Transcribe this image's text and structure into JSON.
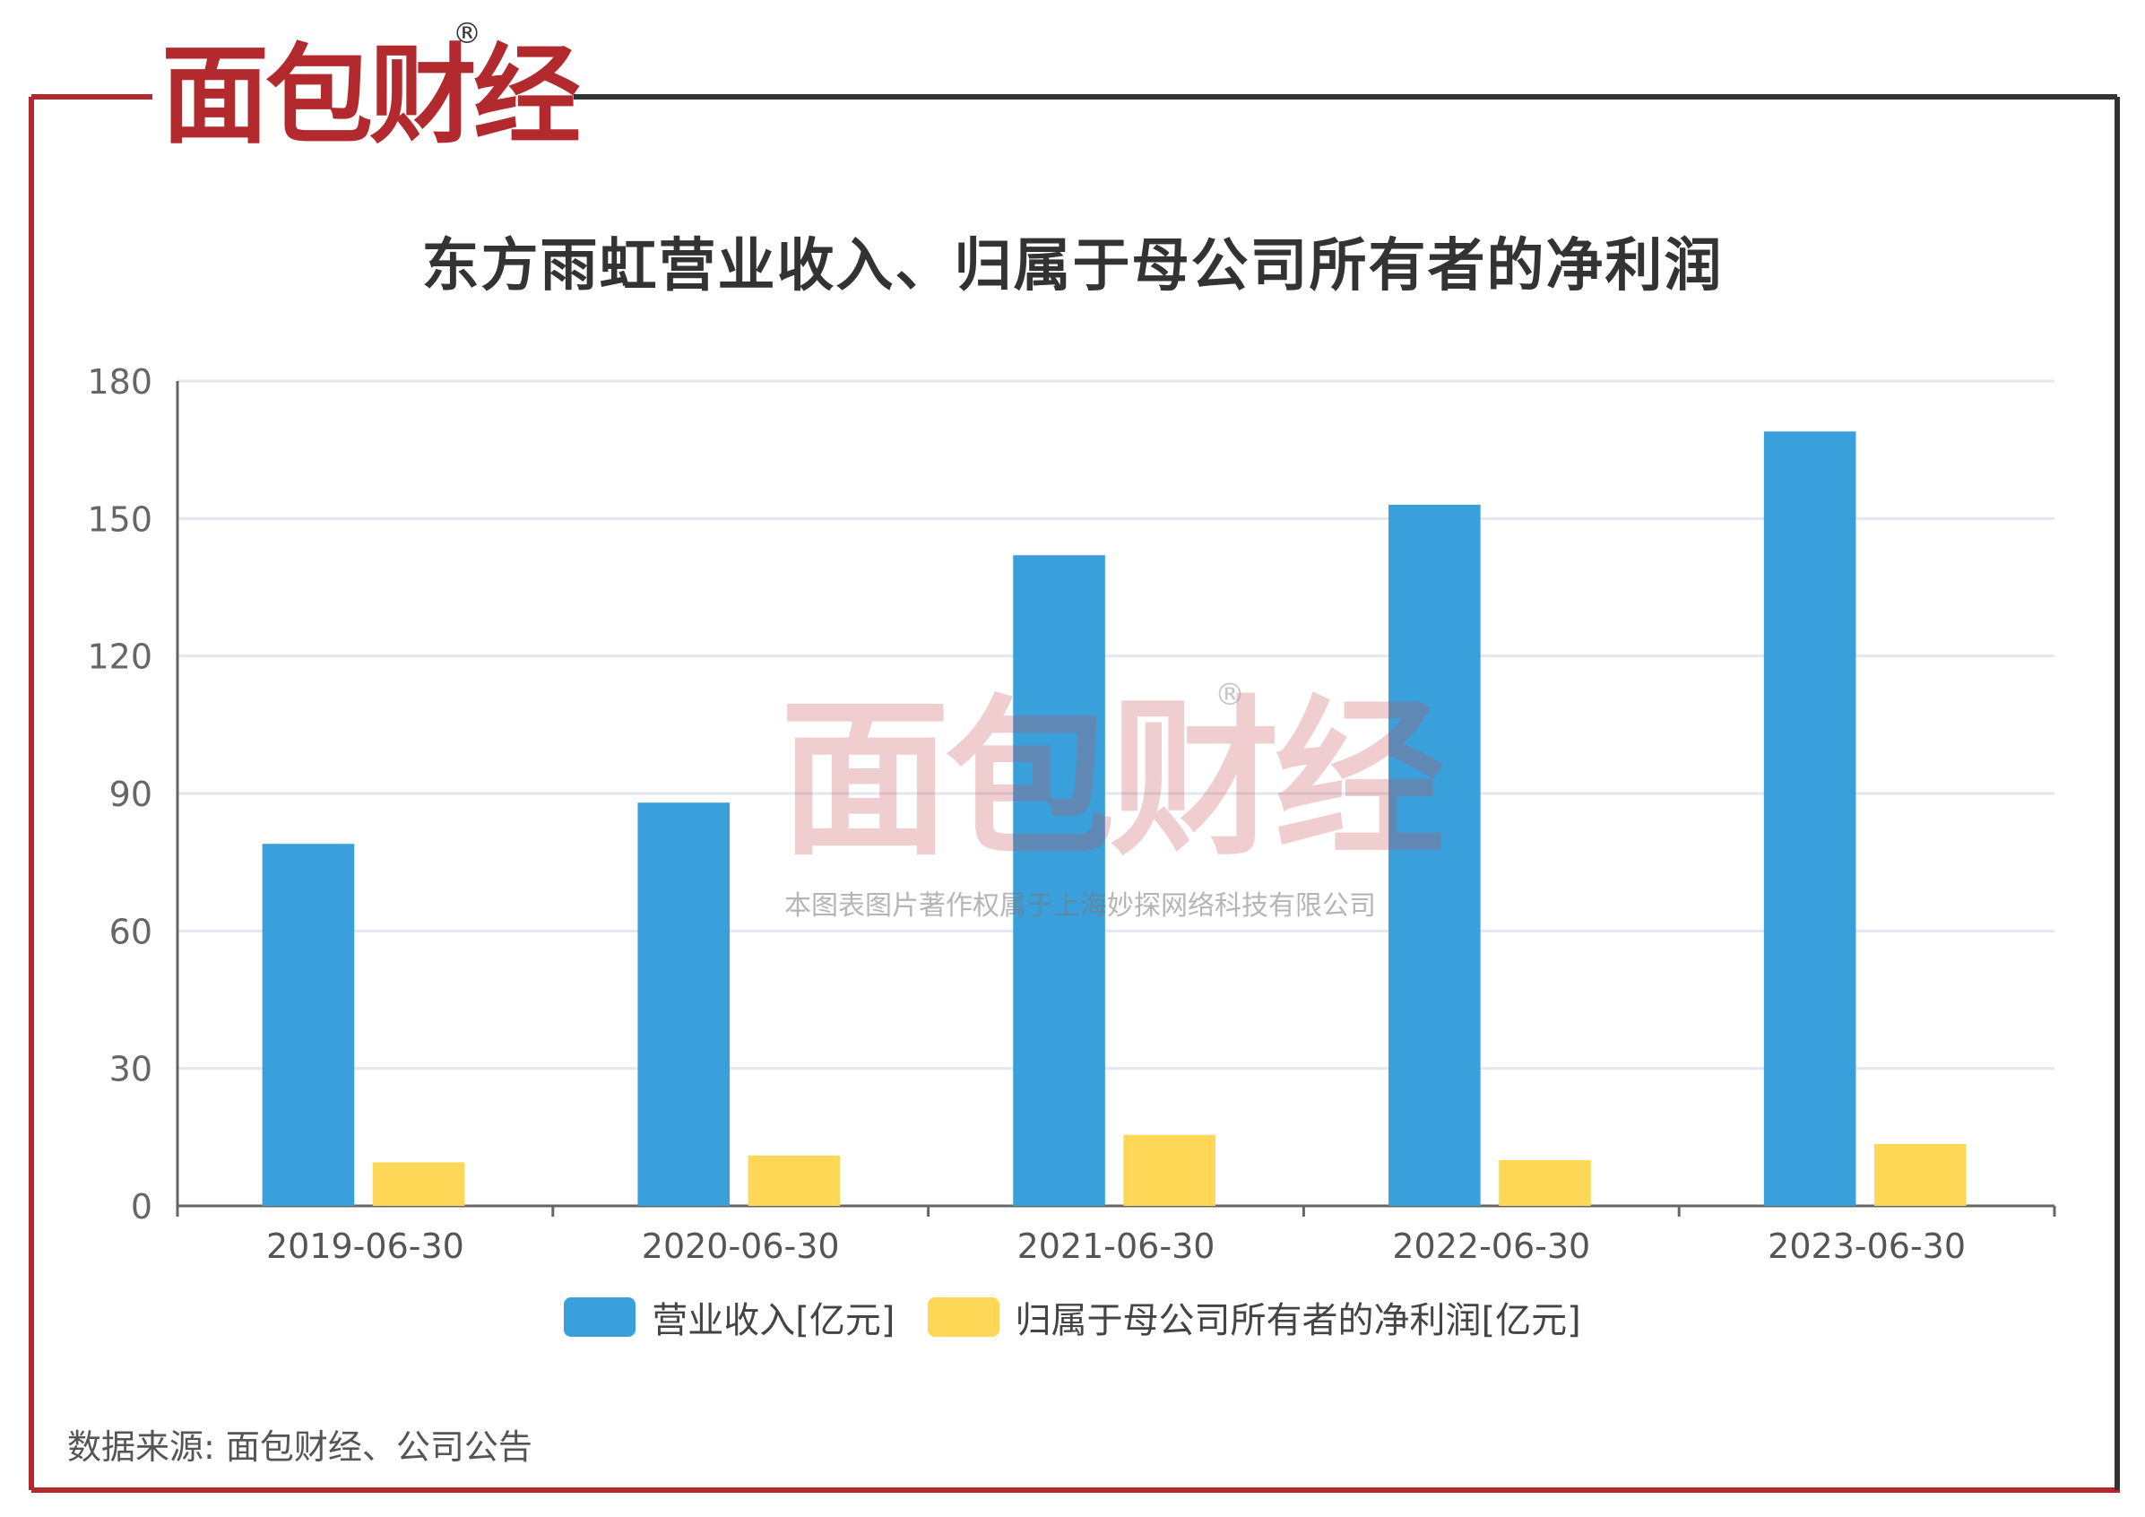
{
  "brand": {
    "logo_text": "面包财经",
    "registered_mark": "®",
    "accent_color": "#b22a2e",
    "watermark_caption": "本图表图片著作权属于上海妙探网络科技有限公司"
  },
  "source_note": "数据来源: 面包财经、公司公告",
  "chart_data": {
    "type": "bar",
    "title": "东方雨虹营业收入、归属于母公司所有者的净利润",
    "categories": [
      "2019-06-30",
      "2020-06-30",
      "2021-06-30",
      "2022-06-30",
      "2023-06-30"
    ],
    "series": [
      {
        "name": "营业收入[亿元]",
        "color": "#3aa0dc",
        "values": [
          79,
          88,
          142,
          153,
          169
        ]
      },
      {
        "name": "归属于母公司所有者的净利润[亿元]",
        "color": "#ffd756",
        "values": [
          9.5,
          11,
          15.5,
          10,
          13.5
        ]
      }
    ],
    "yticks": [
      "0",
      "30",
      "60",
      "90",
      "120",
      "150",
      "180"
    ],
    "ylim": [
      0,
      180
    ],
    "grid": true,
    "legend_position": "bottom"
  }
}
